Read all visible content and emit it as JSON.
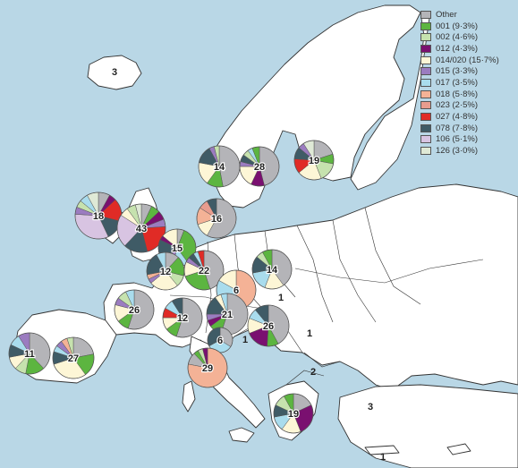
{
  "legend": [
    {
      "label": "Other",
      "color": "#b4b4b8"
    },
    {
      "label": "001 (9·3%)",
      "color": "#5cb540"
    },
    {
      "label": "002 (4·6%)",
      "color": "#c6e2ae"
    },
    {
      "label": "012 (4·3%)",
      "color": "#7a1070"
    },
    {
      "label": "014/020 (15·7%)",
      "color": "#fdf6d6"
    },
    {
      "label": "015 (3·3%)",
      "color": "#9b7cc0"
    },
    {
      "label": "017 (3·5%)",
      "color": "#a9dced"
    },
    {
      "label": "018 (5·8%)",
      "color": "#f4b296"
    },
    {
      "label": "023 (2·5%)",
      "color": "#e89c8e"
    },
    {
      "label": "027 (4·8%)",
      "color": "#e02b26"
    },
    {
      "label": "078 (7·8%)",
      "color": "#3f5b66"
    },
    {
      "label": "106 (5·1%)",
      "color": "#d8c4e2"
    },
    {
      "label": "126 (3·0%)",
      "color": "#dfe9d6"
    }
  ],
  "pies": [
    {
      "count": "14",
      "slices": [
        [
          "Other",
          0.47
        ],
        [
          "001",
          0.13
        ],
        [
          "014/020",
          0.18
        ],
        [
          "078",
          0.14
        ],
        [
          "015",
          0.04
        ],
        [
          "002",
          0.04
        ]
      ]
    },
    {
      "count": "28",
      "slices": [
        [
          "Other",
          0.46
        ],
        [
          "012",
          0.11
        ],
        [
          "014/020",
          0.18
        ],
        [
          "015",
          0.04
        ],
        [
          "078",
          0.06
        ],
        [
          "002",
          0.05
        ],
        [
          "017",
          0.04
        ],
        [
          "001",
          0.06
        ]
      ]
    },
    {
      "count": "19",
      "slices": [
        [
          "Other",
          0.2
        ],
        [
          "001",
          0.08
        ],
        [
          "002",
          0.16
        ],
        [
          "014/020",
          0.2
        ],
        [
          "027",
          0.12
        ],
        [
          "078",
          0.1
        ],
        [
          "015",
          0.05
        ],
        [
          "126",
          0.09
        ]
      ]
    },
    {
      "count": "18",
      "slices": [
        [
          "Other",
          0.08
        ],
        [
          "012",
          0.05
        ],
        [
          "027",
          0.16
        ],
        [
          "078",
          0.14
        ],
        [
          "106",
          0.33
        ],
        [
          "015",
          0.05
        ],
        [
          "002",
          0.05
        ],
        [
          "017",
          0.06
        ],
        [
          "126",
          0.08
        ]
      ]
    },
    {
      "count": "43",
      "slices": [
        [
          "Other",
          0.07
        ],
        [
          "001",
          0.06
        ],
        [
          "012",
          0.06
        ],
        [
          "015",
          0.05
        ],
        [
          "027",
          0.22
        ],
        [
          "078",
          0.16
        ],
        [
          "106",
          0.22
        ],
        [
          "014/020",
          0.06
        ],
        [
          "002",
          0.06
        ],
        [
          "126",
          0.04
        ]
      ]
    },
    {
      "count": "16",
      "slices": [
        [
          "Other",
          0.58
        ],
        [
          "014/020",
          0.12
        ],
        [
          "018",
          0.14
        ],
        [
          "023",
          0.08
        ],
        [
          "078",
          0.08
        ]
      ]
    },
    {
      "count": "15",
      "slices": [
        [
          "Other",
          0.06
        ],
        [
          "001",
          0.34
        ],
        [
          "017",
          0.14
        ],
        [
          "015",
          0.08
        ],
        [
          "078",
          0.2
        ],
        [
          "012",
          0.04
        ],
        [
          "014/020",
          0.14
        ]
      ]
    },
    {
      "count": "12",
      "slices": [
        [
          "Other",
          0.12
        ],
        [
          "001",
          0.17
        ],
        [
          "002",
          0.1
        ],
        [
          "014/020",
          0.25
        ],
        [
          "015",
          0.04
        ],
        [
          "018",
          0.04
        ],
        [
          "078",
          0.2
        ],
        [
          "017",
          0.08
        ]
      ]
    },
    {
      "count": "22",
      "slices": [
        [
          "Other",
          0.45
        ],
        [
          "001",
          0.25
        ],
        [
          "014/020",
          0.12
        ],
        [
          "015",
          0.04
        ],
        [
          "078",
          0.05
        ],
        [
          "017",
          0.04
        ],
        [
          "027",
          0.05
        ]
      ]
    },
    {
      "count": "14",
      "slices": [
        [
          "Other",
          0.4
        ],
        [
          "014/020",
          0.16
        ],
        [
          "017",
          0.16
        ],
        [
          "078",
          0.14
        ],
        [
          "002",
          0.06
        ],
        [
          "001",
          0.08
        ]
      ]
    },
    {
      "count": "6",
      "slices": [
        [
          "018",
          0.5
        ],
        [
          "017",
          0.33
        ],
        [
          "014/020",
          0.17
        ]
      ]
    },
    {
      "count": "26",
      "slices": [
        [
          "Other",
          0.55
        ],
        [
          "001",
          0.1
        ],
        [
          "014/020",
          0.14
        ],
        [
          "015",
          0.06
        ],
        [
          "002",
          0.08
        ],
        [
          "017",
          0.07
        ]
      ]
    },
    {
      "count": "12",
      "slices": [
        [
          "Other",
          0.55
        ],
        [
          "001",
          0.1
        ],
        [
          "014/020",
          0.1
        ],
        [
          "027",
          0.08
        ],
        [
          "017",
          0.08
        ],
        [
          "078",
          0.09
        ]
      ]
    },
    {
      "count": "21",
      "slices": [
        [
          "Other",
          0.55
        ],
        [
          "001",
          0.1
        ],
        [
          "012",
          0.05
        ],
        [
          "015",
          0.05
        ],
        [
          "078",
          0.15
        ],
        [
          "014/020",
          0.05
        ],
        [
          "017",
          0.05
        ]
      ]
    },
    {
      "count": "26",
      "slices": [
        [
          "Other",
          0.42
        ],
        [
          "001",
          0.09
        ],
        [
          "012",
          0.18
        ],
        [
          "014/020",
          0.12
        ],
        [
          "017",
          0.08
        ],
        [
          "078",
          0.11
        ]
      ]
    },
    {
      "count": "6",
      "slices": [
        [
          "Other",
          0.34
        ],
        [
          "017",
          0.33
        ],
        [
          "078",
          0.33
        ]
      ]
    },
    {
      "count": "11",
      "slices": [
        [
          "Other",
          0.38
        ],
        [
          "001",
          0.15
        ],
        [
          "002",
          0.09
        ],
        [
          "014/020",
          0.1
        ],
        [
          "078",
          0.1
        ],
        [
          "017",
          0.09
        ],
        [
          "015",
          0.09
        ]
      ]
    },
    {
      "count": "27",
      "slices": [
        [
          "Other",
          0.22
        ],
        [
          "001",
          0.18
        ],
        [
          "014/020",
          0.3
        ],
        [
          "078",
          0.1
        ],
        [
          "017",
          0.05
        ],
        [
          "015",
          0.05
        ],
        [
          "018",
          0.05
        ],
        [
          "002",
          0.05
        ]
      ]
    },
    {
      "count": "29",
      "slices": [
        [
          "018",
          0.78
        ],
        [
          "Other",
          0.1
        ],
        [
          "001",
          0.04
        ],
        [
          "002",
          0.04
        ],
        [
          "012",
          0.04
        ]
      ]
    },
    {
      "count": "19",
      "slices": [
        [
          "Other",
          0.18
        ],
        [
          "012",
          0.26
        ],
        [
          "014/020",
          0.16
        ],
        [
          "017",
          0.12
        ],
        [
          "078",
          0.1
        ],
        [
          "002",
          0.1
        ],
        [
          "001",
          0.08
        ]
      ]
    }
  ],
  "labels": [
    {
      "text": "3"
    },
    {
      "text": "1"
    },
    {
      "text": "1"
    },
    {
      "text": "1"
    },
    {
      "text": "2"
    },
    {
      "text": "3"
    },
    {
      "text": "1"
    }
  ]
}
